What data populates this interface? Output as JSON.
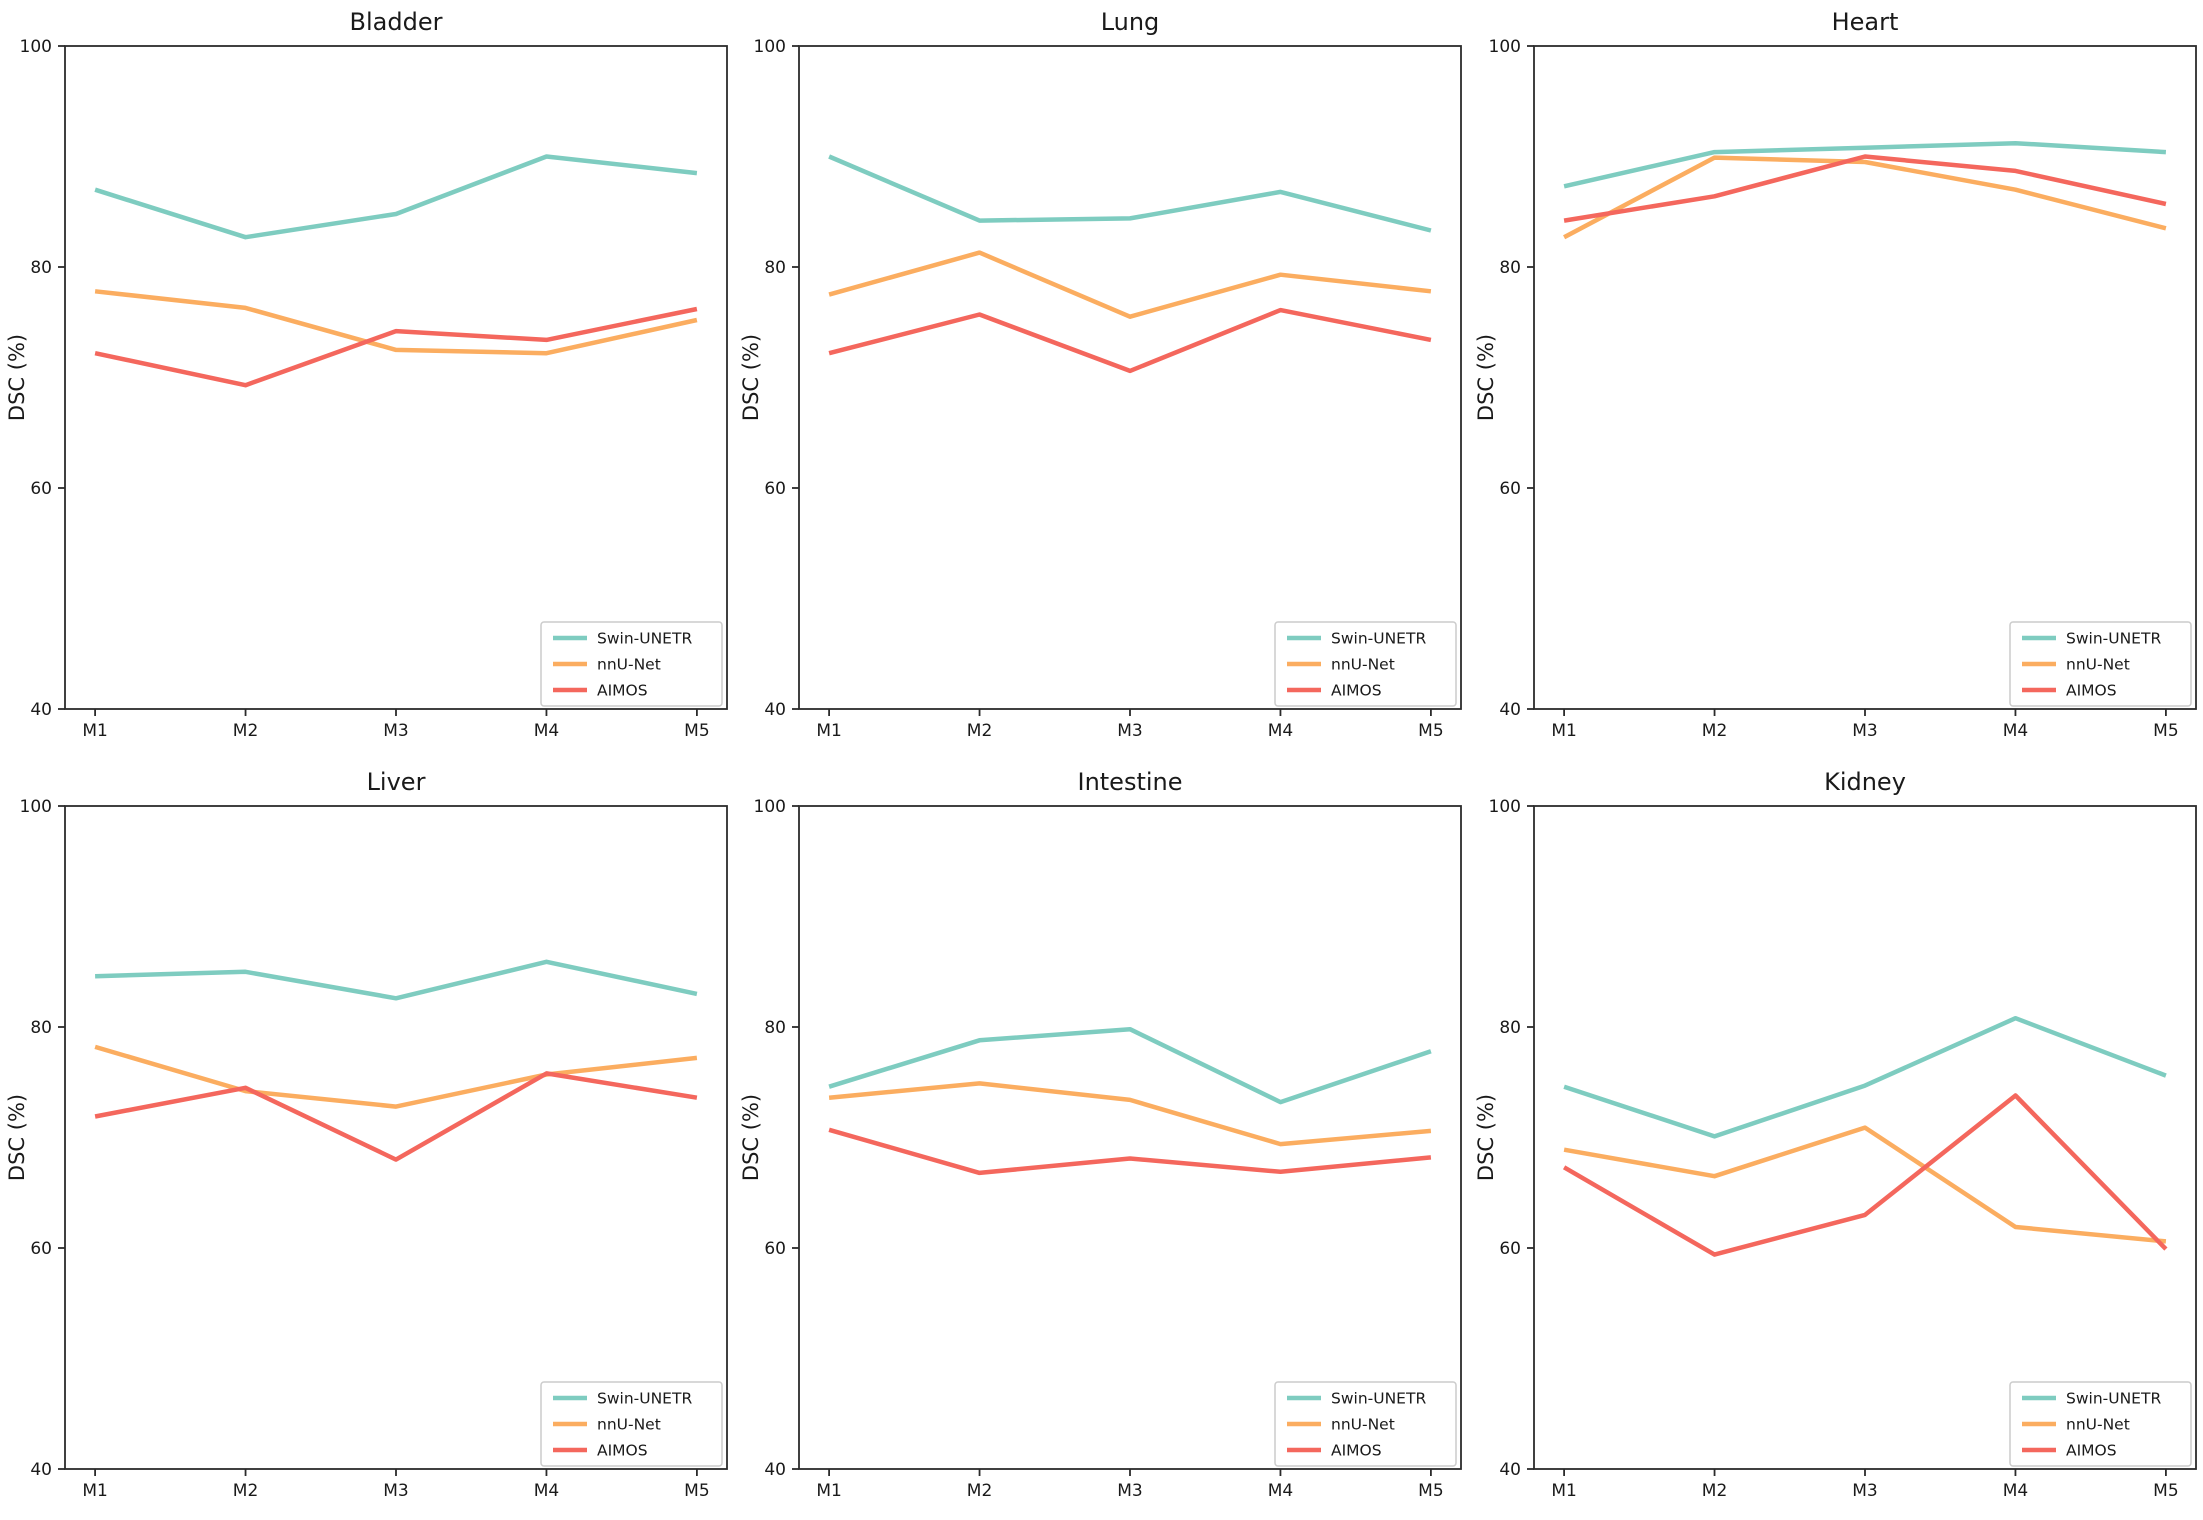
{
  "figure": {
    "ylabel": "DSC (%)",
    "categories": [
      "M1",
      "M2",
      "M3",
      "M4",
      "M5"
    ],
    "yticks": [
      40,
      60,
      80,
      100
    ],
    "ylim": [
      40,
      100
    ],
    "legend_labels": [
      "Swin-UNETR",
      "nnU-Net",
      "AIMOS"
    ],
    "colors": {
      "swin_unetr": "#7ECCC0",
      "nnu_net": "#FBAD60",
      "aimos": "#F4675D"
    },
    "axis_color": "#2b2b2b",
    "text_color": "#1a1a1a",
    "legend_border_color": "#cccccc"
  },
  "chart_data": [
    {
      "type": "line",
      "title": "Bladder",
      "x": [
        "M1",
        "M2",
        "M3",
        "M4",
        "M5"
      ],
      "xlabel": "",
      "ylabel": "DSC (%)",
      "ylim": [
        40,
        100
      ],
      "yticks": [
        40,
        60,
        80,
        100
      ],
      "grid": false,
      "legend_position": "lower right",
      "series": [
        {
          "name": "Swin-UNETR",
          "color": "#7ECCC0",
          "values": [
            87.0,
            82.7,
            84.8,
            90.0,
            88.5
          ]
        },
        {
          "name": "nnU-Net",
          "color": "#FBAD60",
          "values": [
            77.8,
            76.3,
            72.5,
            72.2,
            75.2
          ]
        },
        {
          "name": "AIMOS",
          "color": "#F4675D",
          "values": [
            72.2,
            69.3,
            74.2,
            73.4,
            76.2
          ]
        }
      ]
    },
    {
      "type": "line",
      "title": "Lung",
      "x": [
        "M1",
        "M2",
        "M3",
        "M4",
        "M5"
      ],
      "xlabel": "",
      "ylabel": "DSC (%)",
      "ylim": [
        40,
        100
      ],
      "yticks": [
        40,
        60,
        80,
        100
      ],
      "grid": false,
      "legend_position": "lower right",
      "series": [
        {
          "name": "Swin-UNETR",
          "color": "#7ECCC0",
          "values": [
            90.0,
            84.2,
            84.4,
            86.8,
            83.3
          ]
        },
        {
          "name": "nnU-Net",
          "color": "#FBAD60",
          "values": [
            77.5,
            81.3,
            75.5,
            79.3,
            77.8
          ]
        },
        {
          "name": "AIMOS",
          "color": "#F4675D",
          "values": [
            72.2,
            75.7,
            70.6,
            76.1,
            73.4
          ]
        }
      ]
    },
    {
      "type": "line",
      "title": "Heart",
      "x": [
        "M1",
        "M2",
        "M3",
        "M4",
        "M5"
      ],
      "xlabel": "",
      "ylabel": "DSC (%)",
      "ylim": [
        40,
        100
      ],
      "yticks": [
        40,
        60,
        80,
        100
      ],
      "grid": false,
      "legend_position": "lower right",
      "series": [
        {
          "name": "Swin-UNETR",
          "color": "#7ECCC0",
          "values": [
            87.3,
            90.4,
            90.8,
            91.2,
            90.4
          ]
        },
        {
          "name": "nnU-Net",
          "color": "#FBAD60",
          "values": [
            82.7,
            89.9,
            89.5,
            87.0,
            83.5
          ]
        },
        {
          "name": "AIMOS",
          "color": "#F4675D",
          "values": [
            84.2,
            86.4,
            90.0,
            88.7,
            85.7
          ]
        }
      ]
    },
    {
      "type": "line",
      "title": "Liver",
      "x": [
        "M1",
        "M2",
        "M3",
        "M4",
        "M5"
      ],
      "xlabel": "",
      "ylabel": "DSC (%)",
      "ylim": [
        40,
        100
      ],
      "yticks": [
        40,
        60,
        80,
        100
      ],
      "grid": false,
      "legend_position": "lower right",
      "series": [
        {
          "name": "Swin-UNETR",
          "color": "#7ECCC0",
          "values": [
            84.6,
            85.0,
            82.6,
            85.9,
            83.0
          ]
        },
        {
          "name": "nnU-Net",
          "color": "#FBAD60",
          "values": [
            78.2,
            74.2,
            72.8,
            75.7,
            77.2
          ]
        },
        {
          "name": "AIMOS",
          "color": "#F4675D",
          "values": [
            71.9,
            74.5,
            68.0,
            75.8,
            73.6
          ]
        }
      ]
    },
    {
      "type": "line",
      "title": "Intestine",
      "x": [
        "M1",
        "M2",
        "M3",
        "M4",
        "M5"
      ],
      "xlabel": "",
      "ylabel": "DSC (%)",
      "ylim": [
        40,
        100
      ],
      "yticks": [
        40,
        60,
        80,
        100
      ],
      "grid": false,
      "legend_position": "lower right",
      "series": [
        {
          "name": "Swin-UNETR",
          "color": "#7ECCC0",
          "values": [
            74.6,
            78.8,
            79.8,
            73.2,
            77.8
          ]
        },
        {
          "name": "nnU-Net",
          "color": "#FBAD60",
          "values": [
            73.6,
            74.9,
            73.4,
            69.4,
            70.6
          ]
        },
        {
          "name": "AIMOS",
          "color": "#F4675D",
          "values": [
            70.7,
            66.8,
            68.1,
            66.9,
            68.2
          ]
        }
      ]
    },
    {
      "type": "line",
      "title": "Kidney",
      "x": [
        "M1",
        "M2",
        "M3",
        "M4",
        "M5"
      ],
      "xlabel": "",
      "ylabel": "DSC (%)",
      "ylim": [
        40,
        100
      ],
      "yticks": [
        40,
        60,
        80,
        100
      ],
      "grid": false,
      "legend_position": "lower right",
      "series": [
        {
          "name": "Swin-UNETR",
          "color": "#7ECCC0",
          "values": [
            74.6,
            70.1,
            74.7,
            80.8,
            75.6
          ]
        },
        {
          "name": "nnU-Net",
          "color": "#FBAD60",
          "values": [
            68.9,
            66.5,
            70.9,
            61.9,
            60.6
          ]
        },
        {
          "name": "AIMOS",
          "color": "#F4675D",
          "values": [
            67.3,
            59.4,
            63.0,
            73.8,
            59.9
          ]
        }
      ]
    }
  ]
}
